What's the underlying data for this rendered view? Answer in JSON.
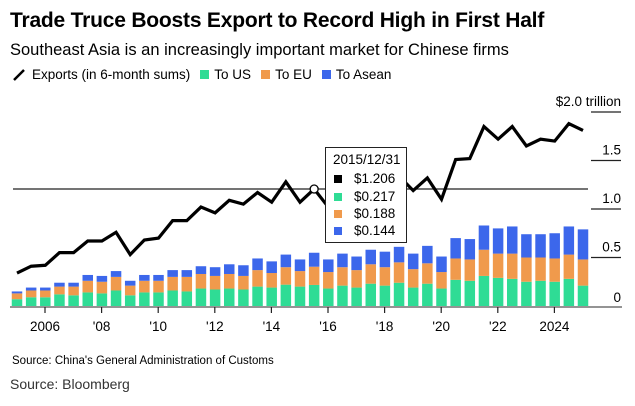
{
  "title": "Trade Truce Boosts Export to Record High in First Half",
  "subtitle": "Southeast Asia is an increasingly important market for Chinese firms",
  "legend": {
    "line_icon": "line-series-icon",
    "items": [
      {
        "label": "Exports (in 6-month sums)",
        "color": "#000000",
        "kind": "line"
      },
      {
        "label": "To US",
        "color": "#2fdc95",
        "kind": "swatch"
      },
      {
        "label": "To EU",
        "color": "#f09a4c",
        "kind": "swatch"
      },
      {
        "label": "To Asean",
        "color": "#3c67eb",
        "kind": "swatch"
      }
    ]
  },
  "tooltip": {
    "date": "2015/12/31",
    "rows": [
      {
        "value": "$1.206",
        "color": "#000000"
      },
      {
        "value": "$0.217",
        "color": "#2fdc95"
      },
      {
        "value": "$0.188",
        "color": "#f09a4c"
      },
      {
        "value": "$0.144",
        "color": "#3c67eb"
      }
    ]
  },
  "sources": {
    "primary": "Source: China's General Administration of Customs",
    "secondary": "Source: Bloomberg"
  },
  "chart_data": {
    "type": "bar",
    "title": "Trade Truce Boosts Export to Record High in First Half",
    "subtitle": "Southeast Asia is an increasingly important market for Chinese firms",
    "xlabel": "",
    "ylabel": "",
    "y_unit_label": "$2.0 trillion",
    "ylim": [
      0,
      2.0
    ],
    "y_ticks": [
      {
        "value": 0,
        "label": "0"
      },
      {
        "value": 0.5,
        "label": "0.5"
      },
      {
        "value": 1.0,
        "label": "1.0"
      },
      {
        "value": 1.5,
        "label": "1.5"
      },
      {
        "value": 2.0,
        "label": "$2.0 trillion"
      }
    ],
    "x_ticks": [
      {
        "year": 2006,
        "label": "2006"
      },
      {
        "year": 2008,
        "label": "'08"
      },
      {
        "year": 2010,
        "label": "'10"
      },
      {
        "year": 2012,
        "label": "'12"
      },
      {
        "year": 2014,
        "label": "'14"
      },
      {
        "year": 2016,
        "label": "'16"
      },
      {
        "year": 2018,
        "label": "'18"
      },
      {
        "year": 2020,
        "label": "'20"
      },
      {
        "year": 2022,
        "label": "'22"
      },
      {
        "year": 2024,
        "label": "2024"
      }
    ],
    "legend_position": "top-left",
    "grid": false,
    "reference_line": 1.206,
    "highlight_index": 21,
    "categories": [
      "2005H1",
      "2005H2",
      "2006H1",
      "2006H2",
      "2007H1",
      "2007H2",
      "2008H1",
      "2008H2",
      "2009H1",
      "2009H2",
      "2010H1",
      "2010H2",
      "2011H1",
      "2011H2",
      "2012H1",
      "2012H2",
      "2013H1",
      "2013H2",
      "2014H1",
      "2014H2",
      "2015H1",
      "2015H2",
      "2016H1",
      "2016H2",
      "2017H1",
      "2017H2",
      "2018H1",
      "2018H2",
      "2019H1",
      "2019H2",
      "2020H1",
      "2020H2",
      "2021H1",
      "2021H2",
      "2022H1",
      "2022H2",
      "2023H1",
      "2023H2",
      "2024H1",
      "2024H2",
      "2025H1"
    ],
    "stacked": true,
    "series": [
      {
        "name": "To US",
        "type": "bar",
        "color": "#2fdc95",
        "values": [
          0.07,
          0.09,
          0.09,
          0.12,
          0.11,
          0.14,
          0.13,
          0.16,
          0.11,
          0.14,
          0.14,
          0.16,
          0.15,
          0.18,
          0.17,
          0.18,
          0.17,
          0.2,
          0.19,
          0.22,
          0.2,
          0.217,
          0.18,
          0.21,
          0.19,
          0.23,
          0.21,
          0.24,
          0.19,
          0.23,
          0.18,
          0.27,
          0.26,
          0.31,
          0.29,
          0.28,
          0.25,
          0.26,
          0.25,
          0.28,
          0.21
        ]
      },
      {
        "name": "To EU",
        "type": "bar",
        "color": "#f09a4c",
        "values": [
          0.06,
          0.07,
          0.07,
          0.08,
          0.09,
          0.12,
          0.12,
          0.14,
          0.1,
          0.12,
          0.12,
          0.14,
          0.15,
          0.15,
          0.14,
          0.15,
          0.14,
          0.17,
          0.15,
          0.18,
          0.16,
          0.188,
          0.17,
          0.19,
          0.18,
          0.2,
          0.19,
          0.21,
          0.19,
          0.21,
          0.17,
          0.22,
          0.22,
          0.27,
          0.25,
          0.26,
          0.25,
          0.24,
          0.24,
          0.25,
          0.27
        ]
      },
      {
        "name": "To Asean",
        "type": "bar",
        "color": "#3c67eb",
        "values": [
          0.02,
          0.03,
          0.03,
          0.04,
          0.04,
          0.06,
          0.06,
          0.06,
          0.05,
          0.06,
          0.06,
          0.07,
          0.07,
          0.08,
          0.09,
          0.1,
          0.11,
          0.12,
          0.12,
          0.13,
          0.12,
          0.144,
          0.13,
          0.14,
          0.14,
          0.15,
          0.16,
          0.16,
          0.16,
          0.18,
          0.16,
          0.21,
          0.21,
          0.25,
          0.26,
          0.28,
          0.24,
          0.24,
          0.26,
          0.29,
          0.31
        ]
      },
      {
        "name": "Exports (in 6-month sums)",
        "type": "line",
        "color": "#000000",
        "values": [
          0.34,
          0.41,
          0.42,
          0.55,
          0.55,
          0.67,
          0.67,
          0.76,
          0.53,
          0.68,
          0.7,
          0.88,
          0.88,
          1.02,
          0.96,
          1.09,
          1.05,
          1.17,
          1.07,
          1.28,
          1.07,
          1.206,
          1.02,
          1.18,
          1.1,
          1.33,
          1.22,
          1.34,
          1.19,
          1.32,
          1.1,
          1.51,
          1.52,
          1.85,
          1.72,
          1.85,
          1.65,
          1.72,
          1.7,
          1.88,
          1.81
        ]
      }
    ]
  }
}
